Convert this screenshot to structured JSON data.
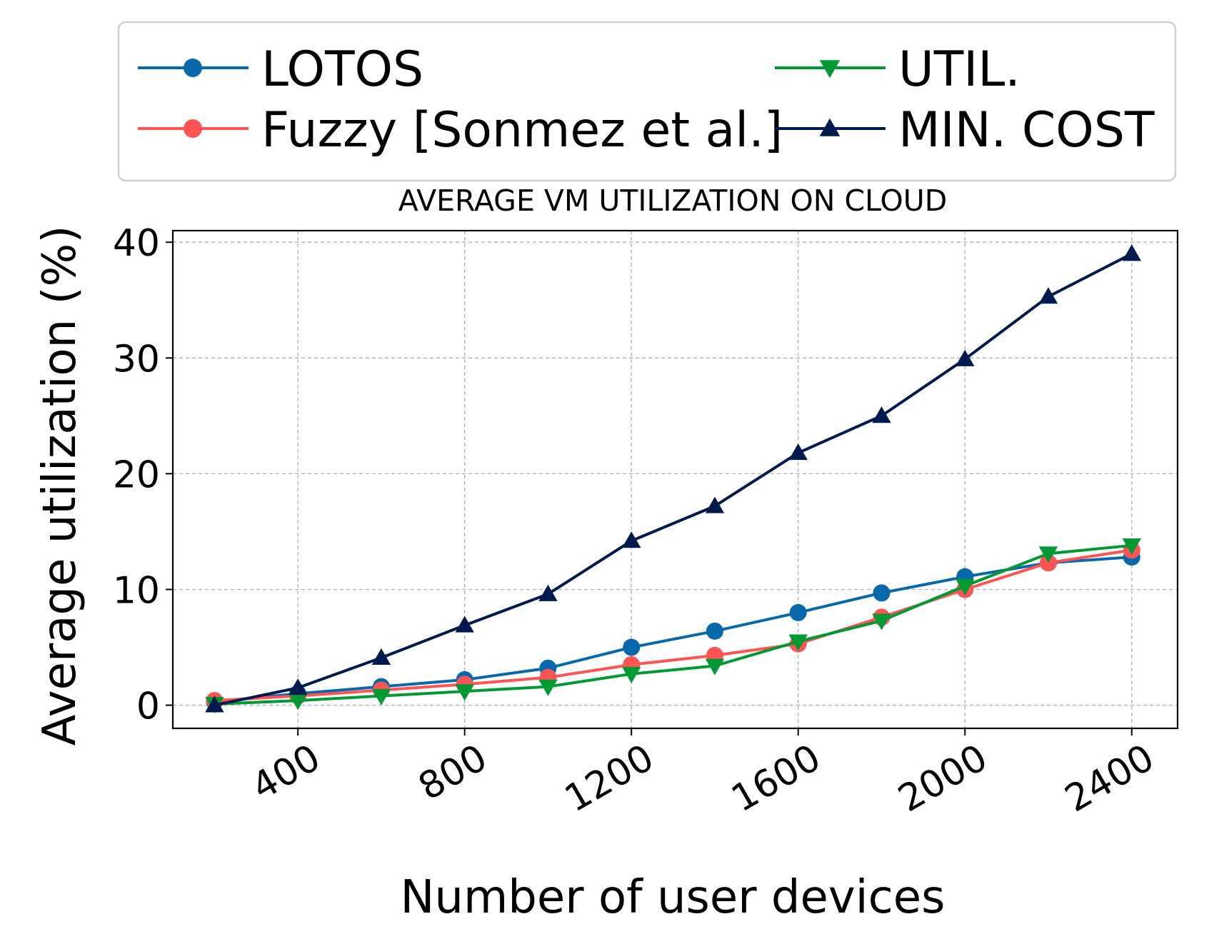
{
  "chart_data": {
    "type": "line",
    "title": "AVERAGE VM UTILIZATION ON CLOUD",
    "xlabel": "Number of user devices",
    "ylabel": "Average utilization (%)",
    "x": [
      200,
      400,
      600,
      800,
      1000,
      1200,
      1400,
      1600,
      1800,
      2000,
      2200,
      2400
    ],
    "xticks": [
      "400",
      "800",
      "1200",
      "1600",
      "2000",
      "2400"
    ],
    "xtick_values": [
      400,
      800,
      1200,
      1600,
      2000,
      2400
    ],
    "yticks": [
      "0",
      "10",
      "20",
      "30",
      "40"
    ],
    "ytick_values": [
      0,
      10,
      20,
      30,
      40
    ],
    "xlim": [
      100,
      2510
    ],
    "ylim": [
      -2,
      41
    ],
    "grid": true,
    "legend_position": "top, outside plot",
    "series": [
      {
        "name": "LOTOS",
        "color": "#0868ac",
        "marker": "circle",
        "values": [
          0.3,
          1.0,
          1.6,
          2.2,
          3.2,
          5.0,
          6.4,
          8.0,
          9.7,
          11.1,
          12.3,
          12.8
        ]
      },
      {
        "name": "Fuzzy [Sonmez et al.]",
        "color": "#ff5454",
        "marker": "circle",
        "values": [
          0.4,
          0.8,
          1.3,
          1.8,
          2.4,
          3.5,
          4.3,
          5.3,
          7.6,
          10.0,
          12.3,
          13.4
        ]
      },
      {
        "name": "UTIL.",
        "color": "#009933",
        "marker": "triangle-down",
        "values": [
          0.1,
          0.4,
          0.8,
          1.2,
          1.6,
          2.7,
          3.4,
          5.5,
          7.3,
          10.3,
          13.1,
          13.8
        ]
      },
      {
        "name": "MIN. COST",
        "color": "#001a4d",
        "marker": "triangle-up",
        "values": [
          0.0,
          1.5,
          4.1,
          6.9,
          9.6,
          14.2,
          17.2,
          21.8,
          25.0,
          29.9,
          35.3,
          39.0
        ]
      }
    ]
  }
}
